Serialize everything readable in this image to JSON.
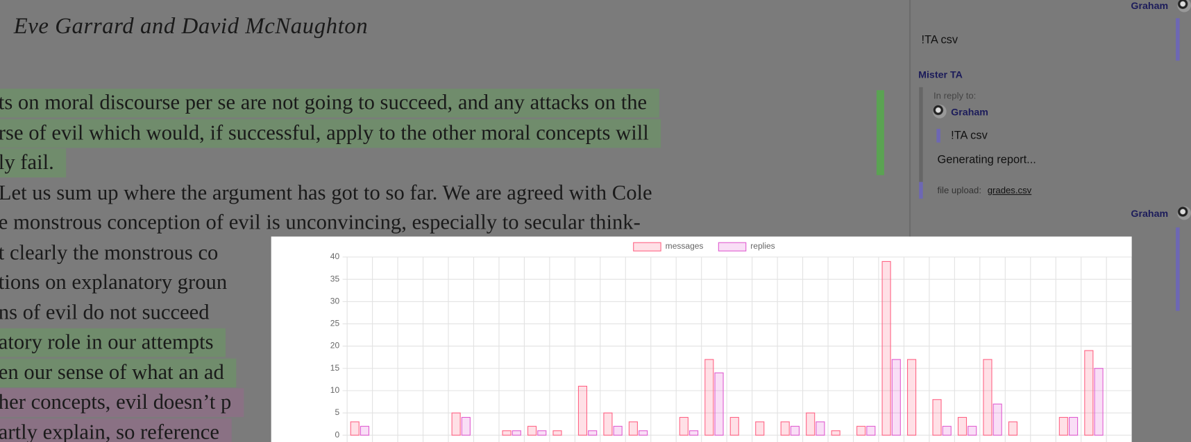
{
  "document": {
    "title": "Eve Garrard and David McNaughton",
    "lines": [
      "ts on moral discourse per se are not going to succeed, and any attacks on the",
      "rse of evil which would, if successful, apply to the other moral concepts will",
      "ly fail.",
      "Let us sum up where the argument has got to so far. We are agreed with Cole",
      "e monstrous conception of evil is unconvincing, especially to secular think-",
      "t clearly the monstrous co",
      "tions on explanatory groun",
      "ns of evil do not succeed",
      "atory role in our attempts",
      "en our sense of what an ad",
      "her concepts, evil doesn’t p",
      "artly explain, so reference"
    ]
  },
  "sidebar": {
    "messages": [
      {
        "author": "Graham",
        "text": "!TA csv"
      },
      {
        "author": "Mister TA",
        "reply_label": "In reply to:",
        "reply_author": "Graham",
        "reply_text": "!TA csv",
        "text": "Generating report...",
        "file_label": "file upload:",
        "file_name": "grades.csv"
      },
      {
        "author": "Graham"
      }
    ]
  },
  "chart_data": {
    "type": "bar",
    "categories": [
      null,
      null,
      null,
      null,
      null,
      null,
      null,
      null,
      null,
      null,
      null,
      null,
      null,
      null,
      null,
      null,
      null,
      null,
      null,
      null,
      null,
      null,
      null,
      null,
      null,
      null,
      null,
      null,
      null,
      null,
      null
    ],
    "series": [
      {
        "name": "messages",
        "color": "#ff6384",
        "values": [
          3,
          0,
          0,
          0,
          5,
          0,
          1,
          2,
          1,
          11,
          5,
          3,
          0,
          4,
          17,
          4,
          3,
          3,
          5,
          1,
          2,
          39,
          17,
          8,
          4,
          17,
          3,
          0,
          4,
          19,
          0
        ]
      },
      {
        "name": "replies",
        "color": "#e05bd0",
        "values": [
          2,
          0,
          0,
          0,
          4,
          0,
          1,
          1,
          0,
          1,
          2,
          1,
          0,
          1,
          14,
          0,
          0,
          2,
          3,
          0,
          2,
          17,
          0,
          2,
          2,
          7,
          0,
          0,
          4,
          15,
          0
        ]
      }
    ],
    "ylim": [
      0,
      40
    ],
    "yticks": [
      0,
      5,
      10,
      15,
      20,
      25,
      30,
      35,
      40
    ],
    "grid": true,
    "legend": "top"
  }
}
